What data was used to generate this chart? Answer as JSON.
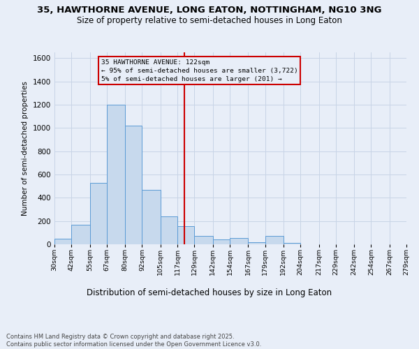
{
  "title_line1": "35, HAWTHORNE AVENUE, LONG EATON, NOTTINGHAM, NG10 3NG",
  "title_line2": "Size of property relative to semi-detached houses in Long Eaton",
  "xlabel": "Distribution of semi-detached houses by size in Long Eaton",
  "ylabel": "Number of semi-detached properties",
  "footnote": "Contains HM Land Registry data © Crown copyright and database right 2025.\nContains public sector information licensed under the Open Government Licence v3.0.",
  "bin_labels": [
    "30sqm",
    "42sqm",
    "55sqm",
    "67sqm",
    "80sqm",
    "92sqm",
    "105sqm",
    "117sqm",
    "129sqm",
    "142sqm",
    "154sqm",
    "167sqm",
    "179sqm",
    "192sqm",
    "204sqm",
    "217sqm",
    "229sqm",
    "242sqm",
    "254sqm",
    "267sqm",
    "279sqm"
  ],
  "bin_edges": [
    30,
    42,
    55,
    67,
    80,
    92,
    105,
    117,
    129,
    142,
    154,
    167,
    179,
    192,
    204,
    217,
    229,
    242,
    254,
    267,
    279
  ],
  "bar_heights": [
    50,
    170,
    530,
    1200,
    1020,
    470,
    240,
    155,
    75,
    40,
    55,
    20,
    70,
    10,
    0,
    0,
    0,
    0,
    0,
    0
  ],
  "bar_color": "#c7d9ed",
  "bar_edge_color": "#5b9bd5",
  "grid_color": "#c8d4e6",
  "bg_color": "#e8eef8",
  "vline_x": 122,
  "vline_color": "#cc0000",
  "annotation_text": "35 HAWTHORNE AVENUE: 122sqm\n← 95% of semi-detached houses are smaller (3,722)\n5% of semi-detached houses are larger (201) →",
  "annotation_box_edgecolor": "#cc0000",
  "ylim": [
    0,
    1650
  ],
  "yticks": [
    0,
    200,
    400,
    600,
    800,
    1000,
    1200,
    1400,
    1600
  ]
}
